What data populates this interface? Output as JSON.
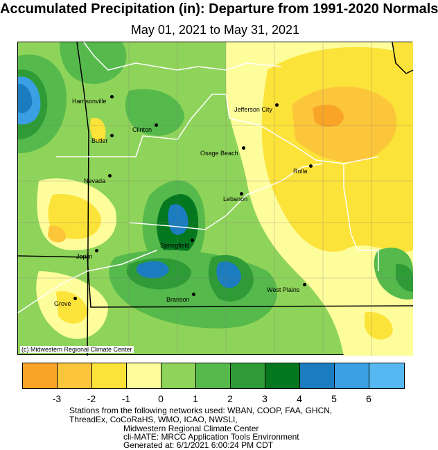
{
  "title": "Accumulated Precipitation (in): Departure from 1991-2020 Normals",
  "subtitle": "May 01, 2021 to May 31, 2021",
  "credit": "(c) Midwestern Regional Climate Center",
  "cities": [
    {
      "name": "Harrisonville"
    },
    {
      "name": "Clinton"
    },
    {
      "name": "Jefferson City"
    },
    {
      "name": "Butler"
    },
    {
      "name": "Osage Beach"
    },
    {
      "name": "Rolla"
    },
    {
      "name": "Nevada"
    },
    {
      "name": "Lebanon"
    },
    {
      "name": "Springfield"
    },
    {
      "name": "Joplin"
    },
    {
      "name": "West Plains"
    },
    {
      "name": "Branson"
    },
    {
      "name": "Grove"
    }
  ],
  "legend": {
    "colors": [
      "#f9a427",
      "#fcc63b",
      "#fce33a",
      "#fefd9c",
      "#8fd45a",
      "#56b94c",
      "#2e9b37",
      "#05781f",
      "#1b7dbf",
      "#3aa0e3",
      "#56b8f0"
    ],
    "ticks": [
      "-3",
      "-2",
      "-1",
      "0",
      "1",
      "2",
      "3",
      "4",
      "5",
      "6"
    ]
  },
  "footer": {
    "stations_line1": "Stations from the following networks used: WBAN, COOP, FAA, GHCN,",
    "stations_line2": "ThreadEx, CoCoRaHS, WMO, ICAO, NWSLI,",
    "org": "Midwestern Regional Climate Center",
    "tool": "cli-MATE: MRCC Application Tools Environment",
    "generated": "Generated at: 6/1/2021 6:00:24 PM CDT"
  }
}
